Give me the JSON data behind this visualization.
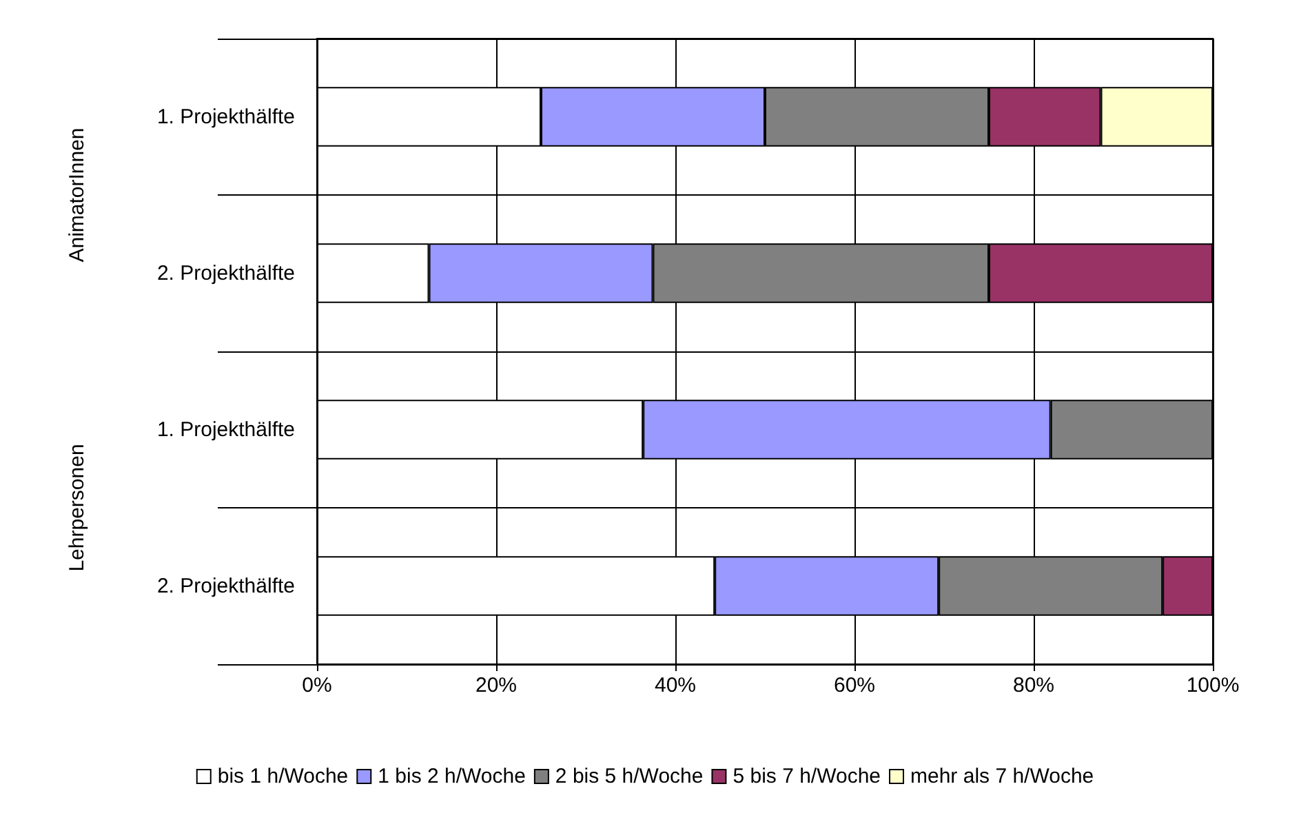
{
  "chart_data": {
    "type": "bar",
    "orientation": "horizontal",
    "stacked": true,
    "categories": [
      "1. Projekthälfte",
      "2. Projekthälfte",
      "1. Projekthälfte",
      "2. Projekthälfte"
    ],
    "annotations": [
      "AnimatorInnen",
      "Lehrpersonen"
    ],
    "series": [
      {
        "name": "bis 1 h/Woche",
        "color": "#ffffff",
        "values": [
          25,
          12.5,
          36.4,
          44.4
        ]
      },
      {
        "name": "1 bis 2 h/Woche",
        "color": "#9999ff",
        "values": [
          25,
          25,
          45.5,
          25
        ]
      },
      {
        "name": "2 bis 5 h/Woche",
        "color": "#808080",
        "values": [
          25,
          37.5,
          18.1,
          25
        ]
      },
      {
        "name": "5 bis 7 h/Woche",
        "color": "#993366",
        "values": [
          12.5,
          25,
          null,
          5.6
        ]
      },
      {
        "name": "mehr als 7 h/Woche",
        "color": "#ffffcc",
        "values": [
          12.5,
          null,
          null,
          null
        ]
      }
    ],
    "xlim": [
      0,
      100
    ],
    "xticks": [
      {
        "value": 0,
        "label": "0%"
      },
      {
        "value": 20,
        "label": "20%"
      },
      {
        "value": 40,
        "label": "40%"
      },
      {
        "value": 60,
        "label": "60%"
      },
      {
        "value": 80,
        "label": "80%"
      },
      {
        "value": 100,
        "label": "100%"
      }
    ],
    "grid": true,
    "legend": "bottom"
  }
}
